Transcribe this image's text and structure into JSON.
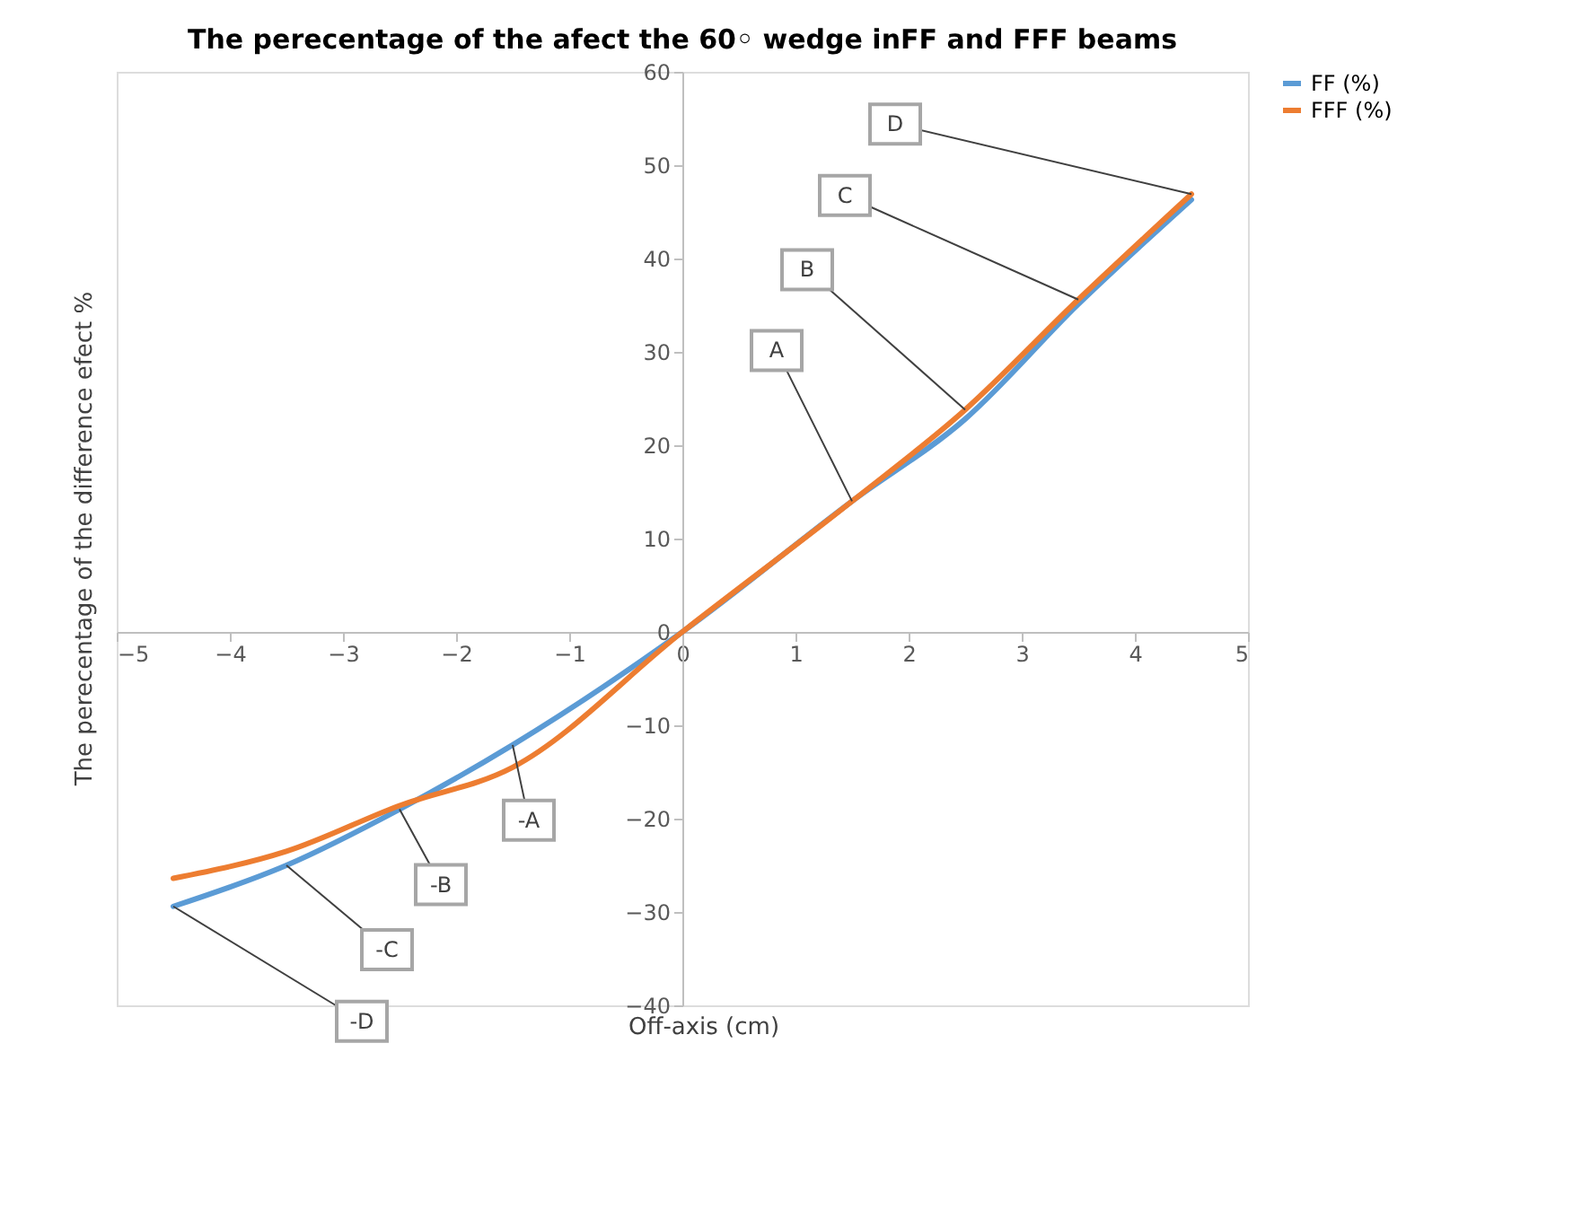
{
  "chart_data": {
    "type": "line",
    "title": "The perecentage of the afect the 60◦ wedge inFF and FFF beams",
    "xlabel": "Off-axis (cm)",
    "ylabel": "The perecentage of the difference efect %",
    "x": [
      -4.5,
      -3.5,
      -2.5,
      -1.5,
      0,
      1.5,
      2.5,
      3.5,
      4.5
    ],
    "series": [
      {
        "name": "FF (%)",
        "color": "#5b9bd5",
        "values": [
          -29.4,
          -25.0,
          -19.0,
          -12.1,
          0,
          14.0,
          22.8,
          35.1,
          46.3
        ]
      },
      {
        "name": "FFF (%)",
        "color": "#ed7d31",
        "values": [
          -26.4,
          -23.5,
          -18.6,
          -14.5,
          0,
          14.0,
          23.8,
          35.6,
          46.9
        ]
      }
    ],
    "xlim": [
      -5,
      5
    ],
    "xticks": [
      -5,
      -4,
      -3,
      -2,
      -1,
      0,
      1,
      2,
      3,
      4,
      5
    ],
    "ylim": [
      -40,
      60
    ],
    "yticks": [
      -40,
      -30,
      -20,
      -10,
      0,
      10,
      20,
      30,
      40,
      50,
      60
    ],
    "grid": false,
    "legend": "right",
    "marker": "none",
    "line_style": "solid",
    "annotations": [
      {
        "text": "A",
        "x": 1.5,
        "y": 14.0
      },
      {
        "text": "B",
        "x": 2.5,
        "y": 23.8
      },
      {
        "text": "C",
        "x": 3.5,
        "y": 35.6
      },
      {
        "text": "D",
        "x": 4.5,
        "y": 46.9
      },
      {
        "text": "-A",
        "x": -1.5,
        "y": -12.1
      },
      {
        "text": "-B",
        "x": -2.5,
        "y": -19.0
      },
      {
        "text": "-C",
        "x": -3.5,
        "y": -25.0
      },
      {
        "text": "-D",
        "x": -4.5,
        "y": -29.4
      }
    ]
  }
}
